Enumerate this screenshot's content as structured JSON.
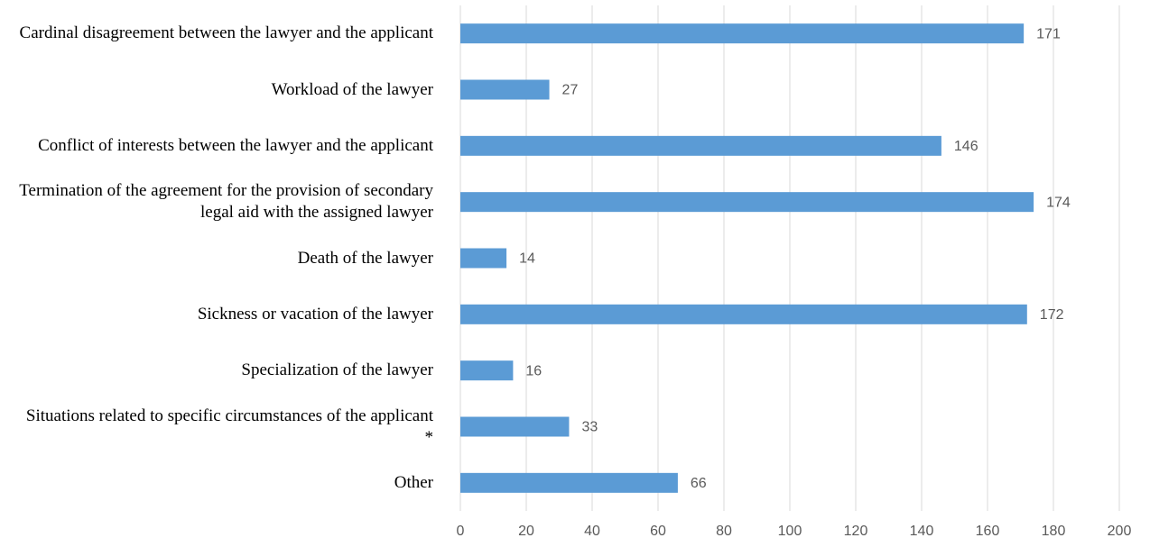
{
  "chart_data": {
    "type": "bar",
    "orientation": "horizontal",
    "categories": [
      "Cardinal disagreement between the lawyer and the applicant",
      "Workload of the lawyer",
      "Conflict of interests between the lawyer and the applicant",
      "Termination of the agreement for the provision of secondary legal aid with the assigned lawyer",
      "Death of the lawyer",
      "Sickness or vacation of the lawyer",
      "Specialization of the lawyer",
      "Situations related to specific circumstances of the applicant *",
      "Other"
    ],
    "values": [
      171,
      27,
      146,
      174,
      14,
      172,
      16,
      33,
      66
    ],
    "color": "#5b9bd5",
    "xlim": [
      0,
      200
    ],
    "xticks": [
      0,
      20,
      40,
      60,
      80,
      100,
      120,
      140,
      160,
      180,
      200
    ],
    "grid": true
  }
}
